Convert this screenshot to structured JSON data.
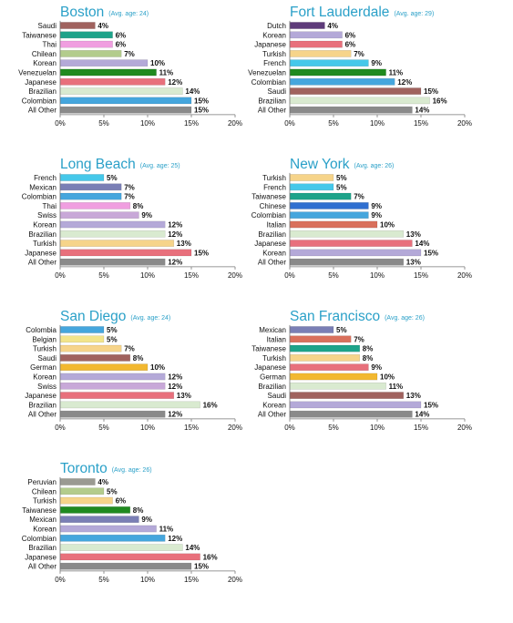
{
  "chart_data": [
    {
      "type": "bar",
      "title": "Boston",
      "subtitle": "(Avg. age: 24)",
      "categories": [
        "Saudi",
        "Taiwanese",
        "Thai",
        "Chilean",
        "Korean",
        "Venezuelan",
        "Japanese",
        "Brazilian",
        "Colombian",
        "All Other"
      ],
      "values": [
        4,
        6,
        6,
        7,
        10,
        11,
        12,
        14,
        15,
        15
      ],
      "value_labels": [
        "4%",
        "6%",
        "6%",
        "7%",
        "10%",
        "11%",
        "12%",
        "14%",
        "15%",
        "15%"
      ],
      "colors": [
        "#a0625e",
        "#1ea38a",
        "#f09ee0",
        "#b3cc8c",
        "#b4a9d8",
        "#1f8a1f",
        "#e8707c",
        "#d9ead0",
        "#45a6dd",
        "#8a8a8a"
      ],
      "xlim": [
        0,
        20
      ],
      "xticks": [
        "0%",
        "5%",
        "10%",
        "15%",
        "20%"
      ],
      "grid": false
    },
    {
      "type": "bar",
      "title": "Fort Lauderdale",
      "subtitle": "(Avg. age: 29)",
      "categories": [
        "Dutch",
        "Korean",
        "Japanese",
        "Turkish",
        "French",
        "Venezuelan",
        "Colombian",
        "Saudi",
        "Brazilian",
        "All Other"
      ],
      "values": [
        4,
        6,
        6,
        7,
        9,
        11,
        12,
        15,
        16,
        14
      ],
      "value_labels": [
        "4%",
        "6%",
        "6%",
        "7%",
        "9%",
        "11%",
        "12%",
        "15%",
        "16%",
        "14%"
      ],
      "colors": [
        "#5e3b7a",
        "#b4a9d8",
        "#e8707c",
        "#f6d48a",
        "#45c8ea",
        "#1f8a1f",
        "#45a6dd",
        "#a0625e",
        "#d9ead0",
        "#8a8a8a"
      ],
      "xlim": [
        0,
        20
      ],
      "xticks": [
        "0%",
        "5%",
        "10%",
        "15%",
        "20%"
      ],
      "grid": false
    },
    {
      "type": "bar",
      "title": "Long Beach",
      "subtitle": "(Avg. age: 25)",
      "categories": [
        "French",
        "Mexican",
        "Colombian",
        "Thai",
        "Swiss",
        "Korean",
        "Brazilian",
        "Turkish",
        "Japanese",
        "All Other"
      ],
      "values": [
        5,
        7,
        7,
        8,
        9,
        12,
        12,
        13,
        15,
        12
      ],
      "value_labels": [
        "5%",
        "7%",
        "7%",
        "8%",
        "9%",
        "12%",
        "12%",
        "13%",
        "15%",
        "12%"
      ],
      "colors": [
        "#45c8ea",
        "#7a7fb5",
        "#45a6dd",
        "#f09ee0",
        "#c8a8d8",
        "#b4a9d8",
        "#d9ead0",
        "#f6d48a",
        "#e8707c",
        "#8a8a8a"
      ],
      "xlim": [
        0,
        20
      ],
      "xticks": [
        "0%",
        "5%",
        "10%",
        "15%",
        "20%"
      ],
      "grid": false
    },
    {
      "type": "bar",
      "title": "New York",
      "subtitle": "(Avg. age: 26)",
      "categories": [
        "Turkish",
        "French",
        "Taiwanese",
        "Chinese",
        "Colombian",
        "Italian",
        "Brazilian",
        "Japanese",
        "Korean",
        "All Other"
      ],
      "values": [
        5,
        5,
        7,
        9,
        9,
        10,
        13,
        14,
        15,
        13
      ],
      "value_labels": [
        "5%",
        "5%",
        "7%",
        "9%",
        "9%",
        "10%",
        "13%",
        "14%",
        "15%",
        "13%"
      ],
      "colors": [
        "#f6d48a",
        "#45c8ea",
        "#1ea38a",
        "#2f6fd0",
        "#45a6dd",
        "#d9705c",
        "#d9ead0",
        "#e8707c",
        "#b4a9d8",
        "#8a8a8a"
      ],
      "xlim": [
        0,
        20
      ],
      "xticks": [
        "0%",
        "5%",
        "10%",
        "15%",
        "20%"
      ],
      "grid": false
    },
    {
      "type": "bar",
      "title": "San Diego",
      "subtitle": "(Avg. age: 24)",
      "categories": [
        "Colombia",
        "Belgian",
        "Turkish",
        "Saudi",
        "German",
        "Korean",
        "Swiss",
        "Japanese",
        "Brazilian",
        "All Other"
      ],
      "values": [
        5,
        5,
        7,
        8,
        10,
        12,
        12,
        13,
        16,
        12
      ],
      "value_labels": [
        "5%",
        "5%",
        "7%",
        "8%",
        "10%",
        "12%",
        "12%",
        "13%",
        "16%",
        "12%"
      ],
      "colors": [
        "#45a6dd",
        "#f2e48a",
        "#f6d48a",
        "#a0625e",
        "#f2b830",
        "#b4a9d8",
        "#c8a8d8",
        "#e8707c",
        "#d9ead0",
        "#8a8a8a"
      ],
      "xlim": [
        0,
        20
      ],
      "xticks": [
        "0%",
        "5%",
        "10%",
        "15%",
        "20%"
      ],
      "grid": false
    },
    {
      "type": "bar",
      "title": "San Francisco",
      "subtitle": "(Avg. age: 26)",
      "categories": [
        "Mexican",
        "Italian",
        "Taiwanese",
        "Turkish",
        "Japanese",
        "German",
        "Brazilian",
        "Saudi",
        "Korean",
        "All Other"
      ],
      "values": [
        5,
        7,
        8,
        8,
        9,
        10,
        11,
        13,
        15,
        14
      ],
      "value_labels": [
        "5%",
        "7%",
        "8%",
        "8%",
        "9%",
        "10%",
        "11%",
        "13%",
        "15%",
        "14%"
      ],
      "colors": [
        "#7a7fb5",
        "#d9705c",
        "#1ea38a",
        "#f6d48a",
        "#e8707c",
        "#f2b830",
        "#d9ead0",
        "#a0625e",
        "#b4a9d8",
        "#8a8a8a"
      ],
      "xlim": [
        0,
        20
      ],
      "xticks": [
        "0%",
        "5%",
        "10%",
        "15%",
        "20%"
      ],
      "grid": false
    },
    {
      "type": "bar",
      "title": "Toronto",
      "subtitle": "(Avg. age: 26)",
      "categories": [
        "Peruvian",
        "Chilean",
        "Turkish",
        "Taiwanese",
        "Mexican",
        "Korean",
        "Colombian",
        "Brazilian",
        "Japanese",
        "All Other"
      ],
      "values": [
        4,
        5,
        6,
        8,
        9,
        11,
        12,
        14,
        16,
        15
      ],
      "value_labels": [
        "4%",
        "5%",
        "6%",
        "8%",
        "9%",
        "11%",
        "12%",
        "14%",
        "16%",
        "15%"
      ],
      "colors": [
        "#9a9a92",
        "#b3cc8c",
        "#f6d48a",
        "#1f8a1f",
        "#7a7fb5",
        "#b4a9d8",
        "#45a6dd",
        "#d9ead0",
        "#e8707c",
        "#8a8a8a"
      ],
      "xlim": [
        0,
        20
      ],
      "xticks": [
        "0%",
        "5%",
        "10%",
        "15%",
        "20%"
      ],
      "grid": false
    }
  ],
  "style": {
    "title_color": "#2aa0c8",
    "subtitle_color": "#2aa0c8",
    "text_color": "#111111",
    "axis_color": "#777777"
  }
}
